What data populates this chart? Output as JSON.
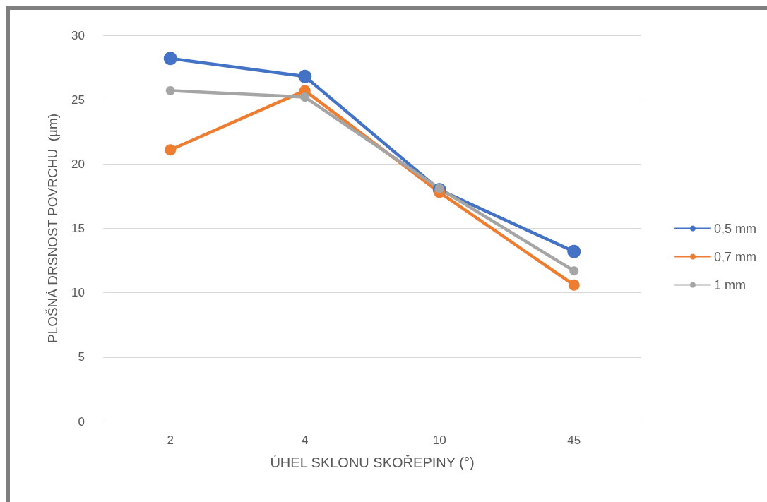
{
  "chart_data": {
    "type": "line",
    "xlabel": "ÚHEL SKLONU SKOŘEPINY (°)",
    "ylabel": "PLOŠNÁ DRSNOST POVRCHU  (µm)",
    "categories": [
      "2",
      "4",
      "10",
      "45"
    ],
    "series": [
      {
        "name": "0,5 mm",
        "color": "#4472c4",
        "values": [
          28.2,
          26.8,
          18,
          13.2
        ]
      },
      {
        "name": "0,7 mm",
        "color": "#ed7d31",
        "values": [
          21.1,
          25.7,
          17.8,
          10.6
        ]
      },
      {
        "name": "1 mm",
        "color": "#a5a5a5",
        "values": [
          25.7,
          25.2,
          18.1,
          11.7
        ]
      }
    ],
    "ylim": [
      0,
      30
    ],
    "yticks": [
      0,
      5,
      10,
      15,
      20,
      25,
      30
    ],
    "grid": "y",
    "legend": "right",
    "marker": "circle",
    "line_style": "solid"
  }
}
